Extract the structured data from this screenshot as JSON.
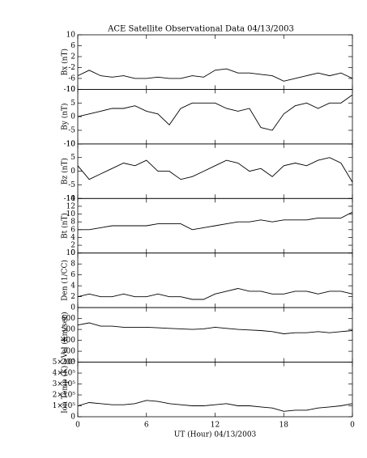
{
  "chart_data": [
    {
      "type": "line",
      "title": "ACE Satellite Observational Data   04/13/2003",
      "ylabel": "Bx (nT)",
      "color": "#000000",
      "x": [
        0,
        1,
        2,
        3,
        4,
        5,
        6,
        7,
        8,
        9,
        10,
        11,
        12,
        13,
        14,
        15,
        16,
        17,
        18,
        19,
        20,
        21,
        22,
        23,
        24
      ],
      "values": [
        -5,
        -3,
        -5,
        -5.5,
        -5,
        -6,
        -6,
        -5.5,
        -6,
        -6,
        -5,
        -5.5,
        -3,
        -2.5,
        -4,
        -4,
        -4.5,
        -5,
        -7,
        -6,
        -5,
        -4,
        -5,
        -4,
        -6
      ],
      "xlim": [
        0,
        24
      ],
      "xticks": [
        0,
        6,
        12,
        18,
        {
          "value": 24,
          "label": "0"
        }
      ],
      "ylim": [
        -10,
        10
      ],
      "yticks": [
        -10,
        -6,
        -2,
        2,
        6,
        10
      ]
    },
    {
      "type": "line",
      "ylabel": "By (nT)",
      "color": "#000000",
      "x": [
        0,
        1,
        2,
        3,
        4,
        5,
        6,
        7,
        8,
        9,
        10,
        11,
        12,
        13,
        14,
        15,
        16,
        17,
        18,
        19,
        20,
        21,
        22,
        23,
        24
      ],
      "values": [
        0,
        1,
        2,
        3,
        3,
        4,
        2,
        1,
        -3,
        3,
        5,
        5,
        5,
        3,
        2,
        3,
        -4,
        -5,
        1,
        4,
        5,
        3,
        5,
        5,
        8
      ],
      "xlim": [
        0,
        24
      ],
      "xticks": [
        0,
        6,
        12,
        18,
        {
          "value": 24,
          "label": "0"
        }
      ],
      "ylim": [
        -10,
        10
      ],
      "yticks": [
        -10,
        -5,
        0,
        5,
        10
      ]
    },
    {
      "type": "line",
      "ylabel": "Bz (nT)",
      "color": "#000000",
      "x": [
        0,
        1,
        2,
        3,
        4,
        5,
        6,
        7,
        8,
        9,
        10,
        11,
        12,
        13,
        14,
        15,
        16,
        17,
        18,
        19,
        20,
        21,
        22,
        23,
        24
      ],
      "values": [
        2,
        -3,
        -1,
        1,
        3,
        2,
        4,
        0,
        0,
        -3,
        -2,
        0,
        2,
        4,
        3,
        0,
        1,
        -2,
        2,
        3,
        2,
        4,
        5,
        3,
        -4
      ],
      "xlim": [
        0,
        24
      ],
      "xticks": [
        0,
        6,
        12,
        18,
        {
          "value": 24,
          "label": "0"
        }
      ],
      "ylim": [
        -10,
        10
      ],
      "yticks": [
        -10,
        -5,
        0,
        5,
        10
      ]
    },
    {
      "type": "line",
      "ylabel": "Bt (nT)",
      "color": "#000000",
      "x": [
        0,
        1,
        2,
        3,
        4,
        5,
        6,
        7,
        8,
        9,
        10,
        11,
        12,
        13,
        14,
        15,
        16,
        17,
        18,
        19,
        20,
        21,
        22,
        23,
        24
      ],
      "values": [
        6,
        6,
        6.5,
        7,
        7,
        7,
        7,
        7.5,
        7.5,
        7.5,
        6,
        6.5,
        7,
        7.5,
        8,
        8,
        8.5,
        8,
        8.5,
        8.5,
        8.5,
        9,
        9,
        9,
        10.5
      ],
      "xlim": [
        0,
        24
      ],
      "xticks": [
        0,
        6,
        12,
        18,
        {
          "value": 24,
          "label": "0"
        }
      ],
      "ylim": [
        0,
        14
      ],
      "yticks": [
        0,
        2,
        4,
        6,
        8,
        10,
        12,
        14
      ]
    },
    {
      "type": "line",
      "ylabel": "Den (1/CC)",
      "color": "#000000",
      "x": [
        0,
        1,
        2,
        3,
        4,
        5,
        6,
        7,
        8,
        9,
        10,
        11,
        12,
        13,
        14,
        15,
        16,
        17,
        18,
        19,
        20,
        21,
        22,
        23,
        24
      ],
      "values": [
        2,
        2.5,
        2,
        2,
        2.5,
        2,
        2,
        2.5,
        2,
        2,
        1.5,
        1.5,
        2.5,
        3,
        3.5,
        3,
        3,
        2.5,
        2.5,
        3,
        3,
        2.5,
        3,
        3,
        2.5
      ],
      "xlim": [
        0,
        24
      ],
      "xticks": [
        0,
        6,
        12,
        18,
        {
          "value": 24,
          "label": "0"
        }
      ],
      "ylim": [
        0,
        10
      ],
      "yticks": [
        0,
        2,
        4,
        6,
        8,
        10
      ]
    },
    {
      "type": "line",
      "ylabel": "Vel (Km/sec)",
      "color": "#000000",
      "x": [
        0,
        1,
        2,
        3,
        4,
        5,
        6,
        7,
        8,
        9,
        10,
        11,
        12,
        13,
        14,
        15,
        16,
        17,
        18,
        19,
        20,
        21,
        22,
        23,
        24
      ],
      "values": [
        540,
        560,
        530,
        530,
        520,
        520,
        520,
        515,
        510,
        505,
        500,
        505,
        520,
        510,
        500,
        495,
        490,
        480,
        460,
        470,
        470,
        480,
        470,
        480,
        490
      ],
      "xlim": [
        0,
        24
      ],
      "xticks": [
        0,
        6,
        12,
        18,
        {
          "value": 24,
          "label": "0"
        }
      ],
      "ylim": [
        200,
        700
      ],
      "yticks": [
        200,
        300,
        400,
        500,
        600
      ]
    },
    {
      "type": "line",
      "ylabel": "Ion Temp (K)",
      "xlabel": "UT (Hour)   04/13/2003",
      "color": "#000000",
      "x": [
        0,
        1,
        2,
        3,
        4,
        5,
        6,
        7,
        8,
        9,
        10,
        11,
        12,
        13,
        14,
        15,
        16,
        17,
        18,
        19,
        20,
        21,
        22,
        23,
        24
      ],
      "values": [
        100000,
        130000,
        120000,
        110000,
        110000,
        120000,
        150000,
        140000,
        120000,
        110000,
        100000,
        100000,
        110000,
        120000,
        100000,
        100000,
        90000,
        80000,
        50000,
        60000,
        60000,
        80000,
        90000,
        100000,
        120000
      ],
      "xlim": [
        0,
        24
      ],
      "xticks": [
        0,
        6,
        12,
        18,
        {
          "value": 24,
          "label": "0"
        }
      ],
      "ylim": [
        0,
        500000
      ],
      "yticks": [
        0,
        {
          "value": 100000,
          "label": "1×10⁵"
        },
        {
          "value": 200000,
          "label": "2×10⁵"
        },
        {
          "value": 300000,
          "label": "3×10⁵"
        },
        {
          "value": 400000,
          "label": "4×10⁵"
        },
        {
          "value": 500000,
          "label": "5×10⁵"
        }
      ]
    }
  ]
}
